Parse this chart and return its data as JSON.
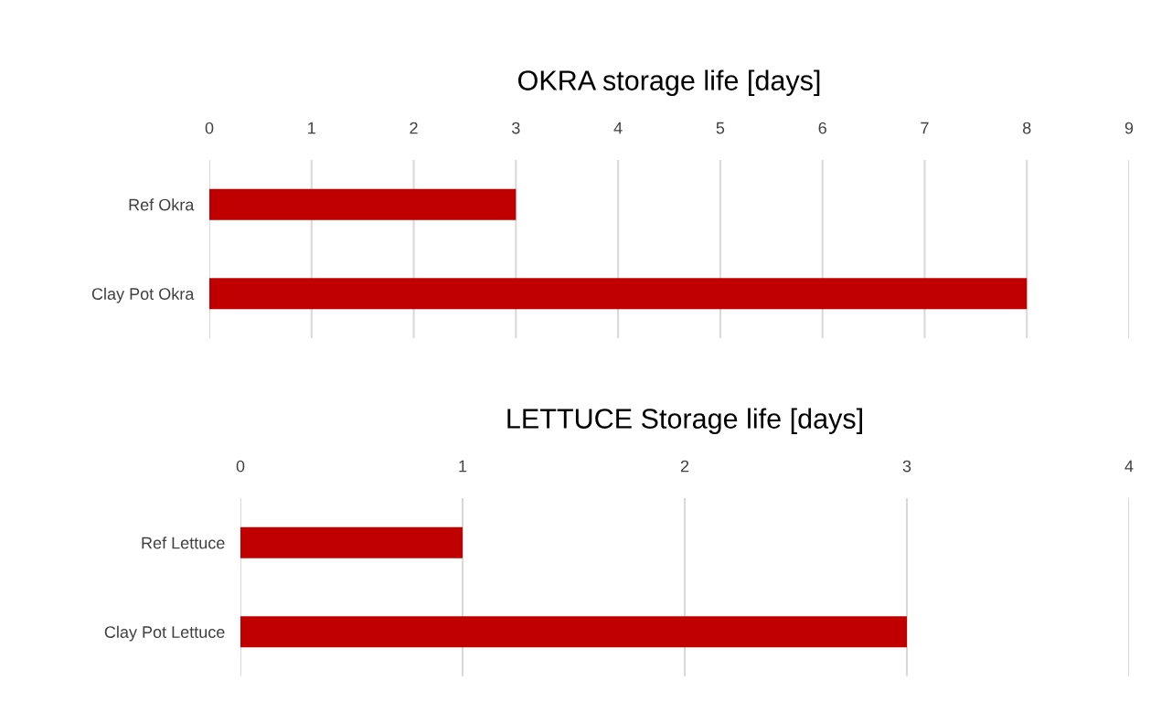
{
  "chart_data": [
    {
      "type": "bar",
      "orientation": "horizontal",
      "title": "OKRA storage life [days]",
      "categories": [
        "Ref Okra",
        "Clay Pot Okra"
      ],
      "values": [
        3,
        8
      ],
      "color": "#c00000",
      "xlim": [
        0,
        9
      ],
      "xticks": [
        0,
        1,
        2,
        3,
        4,
        5,
        6,
        7,
        8,
        9
      ],
      "grid": "x"
    },
    {
      "type": "bar",
      "orientation": "horizontal",
      "title": "LETTUCE Storage life [days]",
      "categories": [
        "Ref Lettuce",
        "Clay Pot Lettuce"
      ],
      "values": [
        1,
        3
      ],
      "color": "#c00000",
      "xlim": [
        0,
        4
      ],
      "xticks": [
        0,
        1,
        2,
        3,
        4
      ],
      "grid": "x"
    }
  ]
}
